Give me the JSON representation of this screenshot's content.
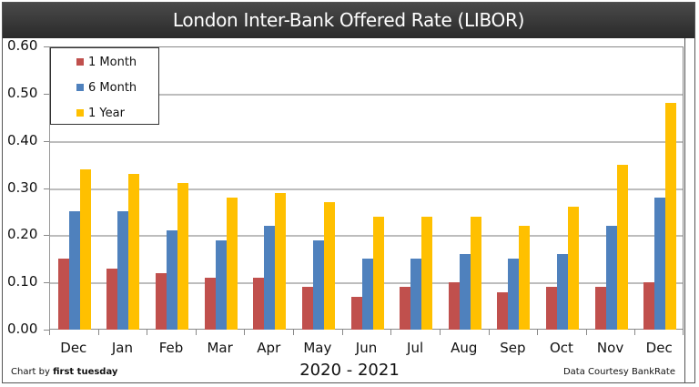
{
  "chart_data": {
    "type": "bar",
    "title": "London Inter-Bank Offered Rate (LIBOR)",
    "xlabel": "2020 - 2021",
    "ylabel": "",
    "ylim": [
      0,
      0.6
    ],
    "yticks": [
      "0.00",
      "0.10",
      "0.20",
      "0.30",
      "0.40",
      "0.50",
      "0.60"
    ],
    "grid": true,
    "legend_position": "upper-left",
    "categories": [
      "Dec",
      "Jan",
      "Feb",
      "Mar",
      "Apr",
      "May",
      "Jun",
      "Jul",
      "Aug",
      "Sep",
      "Oct",
      "Nov",
      "Dec"
    ],
    "series": [
      {
        "name": "1 Month",
        "color": "#c0504d",
        "values": [
          0.15,
          0.13,
          0.12,
          0.11,
          0.11,
          0.09,
          0.07,
          0.09,
          0.1,
          0.08,
          0.09,
          0.09,
          0.1
        ]
      },
      {
        "name": "6 Month",
        "color": "#4f81bd",
        "values": [
          0.25,
          0.25,
          0.21,
          0.19,
          0.22,
          0.19,
          0.15,
          0.15,
          0.16,
          0.15,
          0.16,
          0.22,
          0.28
        ]
      },
      {
        "name": "1 Year",
        "color": "#ffc000",
        "values": [
          0.34,
          0.33,
          0.31,
          0.28,
          0.29,
          0.27,
          0.24,
          0.24,
          0.24,
          0.22,
          0.26,
          0.35,
          0.48
        ]
      }
    ]
  },
  "footer": {
    "credit_prefix": "Chart by ",
    "credit_name": "first tuesday",
    "period": "2020 - 2021",
    "source": "Data Courtesy BankRate"
  }
}
